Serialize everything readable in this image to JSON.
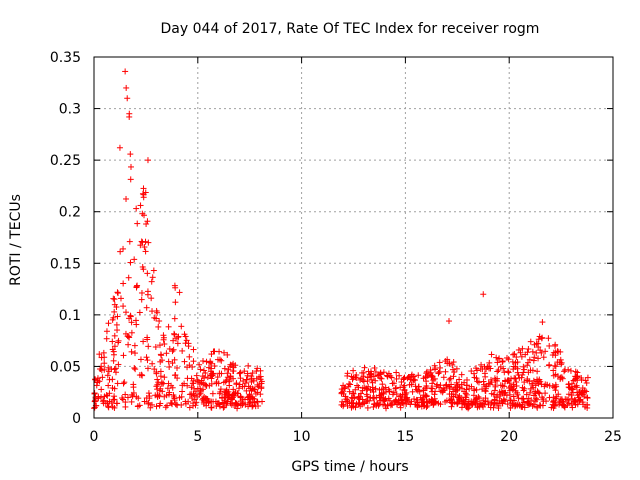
{
  "chart_data": {
    "type": "scatter",
    "title": "Day 044 of 2017, Rate Of TEC Index for receiver rogm",
    "xlabel": "GPS time / hours",
    "ylabel": "ROTI / TECUs",
    "xlim": [
      0,
      25
    ],
    "ylim": [
      0,
      0.35
    ],
    "xticks": [
      0,
      5,
      10,
      15,
      20,
      25
    ],
    "xtick_labels": [
      "0",
      "5",
      "10",
      "15",
      "20",
      "25"
    ],
    "yticks": [
      0,
      0.05,
      0.1,
      0.15,
      0.2,
      0.25,
      0.3,
      0.35
    ],
    "ytick_labels": [
      "0",
      "0.05",
      "0.1",
      "0.15",
      "0.2",
      "0.25",
      "0.3",
      "0.35"
    ],
    "grid": true,
    "marker": "+",
    "color": "#ff0000",
    "series": [
      {
        "name": "ROTI",
        "segments": [
          {
            "x_start": 0.0,
            "x_end": 8.1,
            "envelope": [
              [
                0.0,
                0.05
              ],
              [
                0.5,
                0.08
              ],
              [
                1.0,
                0.14
              ],
              [
                1.5,
                0.21
              ],
              [
                1.7,
                0.32
              ],
              [
                2.0,
                0.2
              ],
              [
                2.5,
                0.24
              ],
              [
                3.0,
                0.12
              ],
              [
                3.5,
                0.08
              ],
              [
                4.0,
                0.14
              ],
              [
                4.5,
                0.08
              ],
              [
                5.0,
                0.06
              ],
              [
                6.0,
                0.07
              ],
              [
                7.0,
                0.05
              ],
              [
                8.1,
                0.05
              ]
            ]
          },
          {
            "x_start": 11.9,
            "x_end": 23.8,
            "envelope": [
              [
                11.9,
                0.04
              ],
              [
                13.0,
                0.05
              ],
              [
                15.0,
                0.04
              ],
              [
                17.0,
                0.06
              ],
              [
                18.0,
                0.04
              ],
              [
                19.0,
                0.06
              ],
              [
                20.0,
                0.06
              ],
              [
                21.5,
                0.08
              ],
              [
                22.0,
                0.08
              ],
              [
                23.0,
                0.05
              ],
              [
                23.8,
                0.04
              ]
            ]
          }
        ],
        "notable_points": [
          {
            "x": 1.5,
            "y": 0.336
          },
          {
            "x": 1.55,
            "y": 0.32
          },
          {
            "x": 1.6,
            "y": 0.31
          },
          {
            "x": 1.7,
            "y": 0.295
          },
          {
            "x": 1.25,
            "y": 0.262
          },
          {
            "x": 2.6,
            "y": 0.25
          },
          {
            "x": 18.75,
            "y": 0.12
          },
          {
            "x": 17.1,
            "y": 0.094
          },
          {
            "x": 21.6,
            "y": 0.093
          }
        ]
      }
    ]
  }
}
